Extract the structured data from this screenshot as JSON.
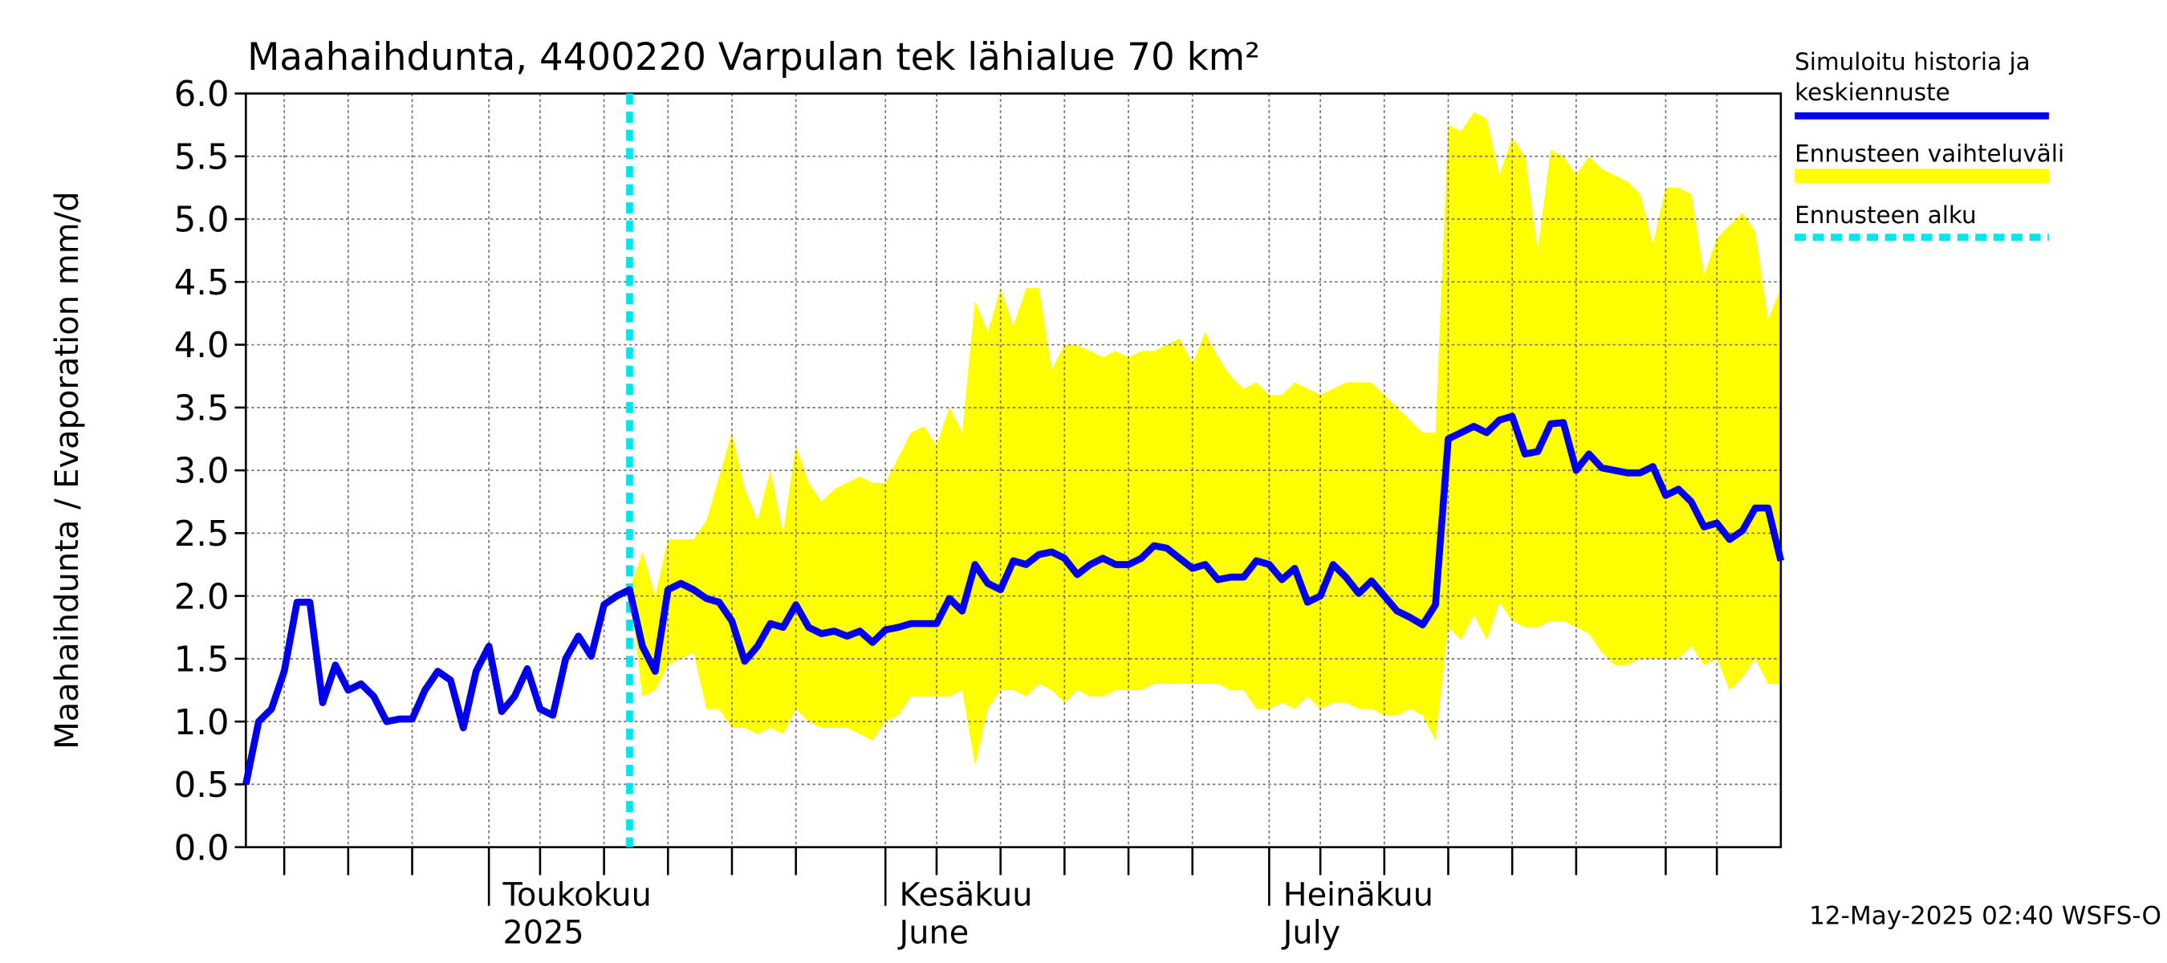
{
  "chart_data": {
    "type": "line",
    "title": "Maahaihdunta, 4400220 Varpulan tek lähialue 70 km²",
    "ylabel": "Maahaihdunta / Evaporation   mm/d",
    "footer": "12-May-2025 02:40 WSFS-O",
    "xlim": [
      0,
      120
    ],
    "xticks": [
      3,
      8,
      13,
      {
        "value": 19,
        "label": [
          "Toukokuu",
          "2025"
        ]
      },
      23,
      28,
      33,
      38,
      43,
      {
        "value": 50,
        "label": [
          "Kesäkuu",
          "June"
        ]
      },
      54,
      59,
      64,
      69,
      74,
      {
        "value": 80,
        "label": [
          "Heinäkuu",
          "July"
        ]
      },
      84,
      89,
      94,
      99,
      104,
      111,
      115
    ],
    "ylim": [
      0,
      6
    ],
    "yticks": [
      {
        "value": 0,
        "label": "0.0"
      },
      {
        "value": 0.5,
        "label": "0.5"
      },
      {
        "value": 1,
        "label": "1.0"
      },
      {
        "value": 1.5,
        "label": "1.5"
      },
      {
        "value": 2,
        "label": "2.0"
      },
      {
        "value": 2.5,
        "label": "2.5"
      },
      {
        "value": 3,
        "label": "3.0"
      },
      {
        "value": 3.5,
        "label": "3.5"
      },
      {
        "value": 4,
        "label": "4.0"
      },
      {
        "value": 4.5,
        "label": "4.5"
      },
      {
        "value": 5,
        "label": "5.0"
      },
      {
        "value": 5.5,
        "label": "5.5"
      },
      {
        "value": 6,
        "label": "6.0"
      }
    ],
    "grid": true,
    "series": [
      {
        "name": "Simuloitu historia ja\nkeskiennuste",
        "color": "#0000ee",
        "values": [
          0.5,
          1.0,
          1.1,
          1.4,
          1.95,
          1.95,
          1.15,
          1.45,
          1.25,
          1.3,
          1.2,
          1.0,
          1.02,
          1.02,
          1.25,
          1.4,
          1.33,
          0.95,
          1.4,
          1.6,
          1.08,
          1.2,
          1.42,
          1.1,
          1.05,
          1.5,
          1.68,
          1.52,
          1.93,
          2.0,
          2.05,
          1.6,
          1.4,
          2.05,
          2.1,
          2.05,
          1.98,
          1.95,
          1.8,
          1.48,
          1.6,
          1.78,
          1.75,
          1.93,
          1.75,
          1.7,
          1.72,
          1.68,
          1.72,
          1.63,
          1.73,
          1.75,
          1.78,
          1.78,
          1.78,
          1.98,
          1.88,
          2.25,
          2.1,
          2.05,
          2.28,
          2.25,
          2.33,
          2.35,
          2.3,
          2.17,
          2.25,
          2.3,
          2.25,
          2.25,
          2.3,
          2.4,
          2.38,
          2.3,
          2.22,
          2.25,
          2.13,
          2.15,
          2.15,
          2.28,
          2.25,
          2.13,
          2.22,
          1.95,
          2.0,
          2.25,
          2.15,
          2.02,
          2.12,
          2.0,
          1.88,
          1.83,
          1.77,
          1.93,
          3.25,
          3.3,
          3.35,
          3.3,
          3.4,
          3.43,
          3.13,
          3.15,
          3.37,
          3.38,
          3.0,
          3.13,
          3.02,
          3.0,
          2.98,
          2.98,
          3.03,
          2.8,
          2.85,
          2.75,
          2.55,
          2.58,
          2.45,
          2.52,
          2.7,
          2.7,
          2.28
        ]
      },
      {
        "name": "Ennusteen vaihteluväli",
        "color": "#ffff00",
        "upper": [
          null,
          null,
          null,
          null,
          null,
          null,
          null,
          null,
          null,
          null,
          null,
          null,
          null,
          null,
          null,
          null,
          null,
          null,
          null,
          null,
          null,
          null,
          null,
          null,
          null,
          null,
          null,
          null,
          null,
          null,
          2.05,
          2.35,
          2.0,
          2.45,
          2.45,
          2.45,
          2.6,
          2.95,
          3.3,
          2.85,
          2.6,
          3.0,
          2.5,
          3.2,
          2.9,
          2.75,
          2.85,
          2.9,
          2.95,
          2.9,
          2.9,
          3.1,
          3.3,
          3.35,
          3.2,
          3.5,
          3.3,
          4.35,
          4.1,
          4.45,
          4.15,
          4.45,
          4.45,
          3.8,
          4.0,
          4.0,
          3.95,
          3.9,
          3.95,
          3.9,
          3.95,
          3.95,
          4.0,
          4.05,
          3.85,
          4.1,
          3.9,
          3.75,
          3.65,
          3.7,
          3.6,
          3.6,
          3.7,
          3.65,
          3.6,
          3.65,
          3.7,
          3.7,
          3.7,
          3.6,
          3.5,
          3.4,
          3.3,
          3.3,
          5.75,
          5.7,
          5.85,
          5.8,
          5.35,
          5.65,
          5.5,
          4.75,
          5.55,
          5.5,
          5.35,
          5.5,
          5.4,
          5.35,
          5.3,
          5.2,
          4.8,
          5.25,
          5.25,
          5.2,
          4.55,
          4.85,
          4.95,
          5.05,
          4.9,
          4.2,
          4.45
        ],
        "lower": [
          null,
          null,
          null,
          null,
          null,
          null,
          null,
          null,
          null,
          null,
          null,
          null,
          null,
          null,
          null,
          null,
          null,
          null,
          null,
          null,
          null,
          null,
          null,
          null,
          null,
          null,
          null,
          null,
          null,
          null,
          2.05,
          1.2,
          1.25,
          1.45,
          1.5,
          1.55,
          1.1,
          1.1,
          0.95,
          0.95,
          0.9,
          0.95,
          0.9,
          1.1,
          1.0,
          0.95,
          0.95,
          0.95,
          0.9,
          0.85,
          1.0,
          1.05,
          1.2,
          1.2,
          1.2,
          1.2,
          1.25,
          0.65,
          1.1,
          1.25,
          1.25,
          1.2,
          1.3,
          1.25,
          1.15,
          1.25,
          1.2,
          1.2,
          1.25,
          1.25,
          1.25,
          1.3,
          1.3,
          1.3,
          1.3,
          1.3,
          1.3,
          1.25,
          1.25,
          1.1,
          1.1,
          1.15,
          1.1,
          1.2,
          1.1,
          1.15,
          1.15,
          1.1,
          1.1,
          1.05,
          1.05,
          1.1,
          1.05,
          0.85,
          1.75,
          1.65,
          1.85,
          1.65,
          1.95,
          1.8,
          1.75,
          1.75,
          1.8,
          1.8,
          1.75,
          1.7,
          1.55,
          1.45,
          1.45,
          1.5,
          1.5,
          1.5,
          1.5,
          1.6,
          1.45,
          1.5,
          1.25,
          1.35,
          1.5,
          1.3,
          1.3
        ]
      },
      {
        "name": "Ennusteen alku",
        "color": "#00e5ee",
        "x": 30
      }
    ]
  }
}
